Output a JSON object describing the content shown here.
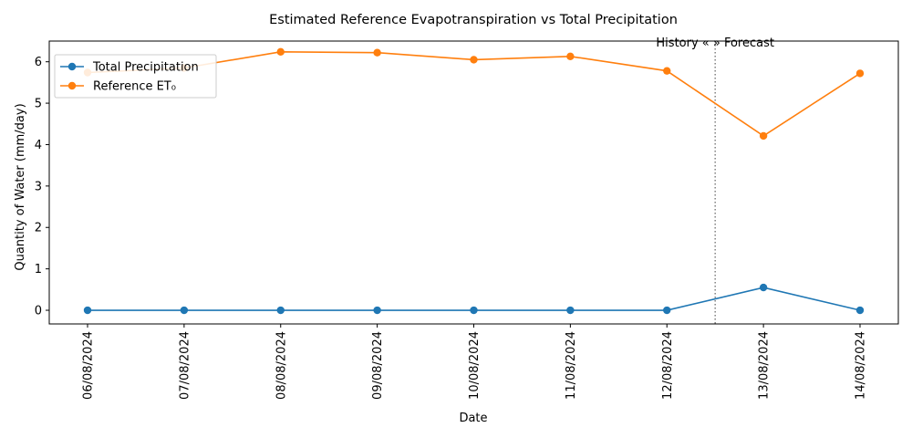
{
  "chart_data": {
    "type": "line",
    "title": "Estimated Reference Evapotranspiration vs Total Precipitation",
    "xlabel": "Date",
    "ylabel": "Quantity of Water (mm/day)",
    "categories": [
      "06/08/2024",
      "07/08/2024",
      "08/08/2024",
      "09/08/2024",
      "10/08/2024",
      "11/08/2024",
      "12/08/2024",
      "13/08/2024",
      "14/08/2024"
    ],
    "series": [
      {
        "name": "Total Precipitation",
        "color": "#1f77b4",
        "values": [
          0,
          0,
          0,
          0,
          0,
          0,
          0,
          0.55,
          0
        ]
      },
      {
        "name": "Reference ET₀",
        "color": "#ff7f0e",
        "values": [
          5.74,
          5.85,
          6.24,
          6.22,
          6.05,
          6.13,
          5.78,
          4.21,
          5.72
        ]
      }
    ],
    "ylim": [
      -0.33,
      6.5
    ],
    "yticks": [
      0,
      1,
      2,
      3,
      4,
      5,
      6
    ],
    "grid": false,
    "legend_position": "top-left",
    "annotation": {
      "label": "History «  » Forecast",
      "between_categories": [
        "12/08/2024",
        "13/08/2024"
      ],
      "line_color": "#808080",
      "line_style": "dotted"
    }
  }
}
